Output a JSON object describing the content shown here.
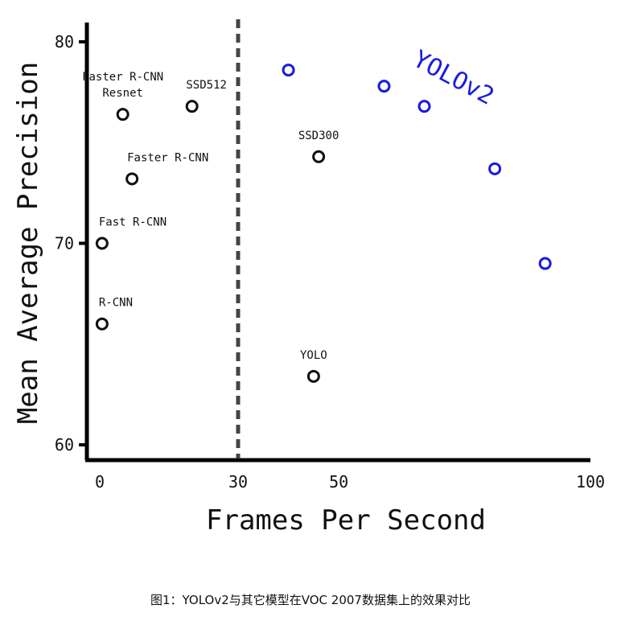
{
  "caption": "图1：YOLOv2与其它模型在VOC 2007数据集上的效果对比",
  "chart_data": {
    "type": "scatter",
    "xlabel": "Frames Per Second",
    "ylabel": "Mean Average Precision",
    "x_segments": [
      {
        "from": 0,
        "to": 30,
        "ticks": [
          0,
          30
        ]
      },
      {
        "from": 30,
        "to": 100,
        "ticks": [
          30,
          50,
          100
        ]
      }
    ],
    "ylim": [
      59.5,
      81.5
    ],
    "yticks": [
      60,
      70,
      80
    ],
    "divider_x": 30,
    "grid": false,
    "series": [
      {
        "color": "#111111",
        "points": [
          {
            "label": "R-CNN",
            "x": 0.5,
            "y": 66.0
          },
          {
            "label": "Fast R-CNN",
            "x": 0.5,
            "y": 70.0
          },
          {
            "label": "Faster R-CNN",
            "x": 7,
            "y": 73.2
          },
          {
            "label": "Faster R-CNN\nResnet",
            "x": 5,
            "y": 76.4
          },
          {
            "label": "SSD512",
            "x": 20,
            "y": 76.8
          },
          {
            "label": "SSD300",
            "x": 46,
            "y": 74.3
          },
          {
            "label": "YOLO",
            "x": 45,
            "y": 63.4
          }
        ]
      },
      {
        "name": "YOLOv2",
        "color": "#1a1adf",
        "points": [
          {
            "x": 40,
            "y": 78.6
          },
          {
            "x": 59,
            "y": 77.8
          },
          {
            "x": 67,
            "y": 76.8
          },
          {
            "x": 81,
            "y": 73.7
          },
          {
            "x": 91,
            "y": 69.0
          }
        ]
      }
    ]
  }
}
